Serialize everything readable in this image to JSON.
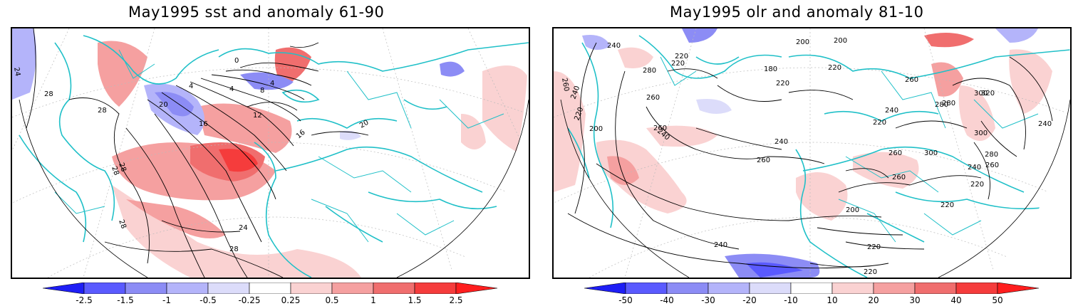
{
  "panels": [
    {
      "title": "May1995 sst and anomaly 61-90",
      "contour_labels": [
        "24",
        "28",
        "28",
        "28",
        "28",
        "28",
        "28",
        "24",
        "20",
        "16",
        "16",
        "12",
        "8",
        "4",
        "4",
        "4",
        "0",
        "20"
      ],
      "colorbar": {
        "labels": [
          "-2.5",
          "-1.5",
          "-1",
          "-0.5",
          "-0.25",
          "0.25",
          "0.5",
          "1",
          "1.5",
          "2.5"
        ],
        "colors": [
          "#1e1ef5",
          "#5a5aff",
          "#8c8cf5",
          "#b4b4fa",
          "#dcdcfa",
          "#ffffff",
          "#fad2d2",
          "#f5a0a0",
          "#f06e6e",
          "#f53c3c",
          "#ff1e1e"
        ]
      }
    },
    {
      "title": "May1995 olr and anomaly 81-10",
      "contour_labels": [
        "240",
        "260",
        "240",
        "220",
        "200",
        "280",
        "220",
        "220",
        "200",
        "180",
        "220",
        "200",
        "220",
        "260",
        "240",
        "260",
        "240",
        "280",
        "300",
        "320",
        "260",
        "220",
        "260",
        "240",
        "260",
        "280",
        "300",
        "300",
        "280",
        "240",
        "260",
        "220",
        "220",
        "240",
        "260",
        "220",
        "200",
        "220",
        "240"
      ],
      "colorbar": {
        "labels": [
          "-50",
          "-40",
          "-30",
          "-20",
          "-10",
          "10",
          "20",
          "30",
          "40",
          "50"
        ],
        "colors": [
          "#1e1ef5",
          "#5a5aff",
          "#8c8cf5",
          "#b4b4fa",
          "#dcdcfa",
          "#ffffff",
          "#fad2d2",
          "#f5a0a0",
          "#f06e6e",
          "#f53c3c",
          "#ff1e1e"
        ]
      }
    }
  ],
  "colors": {
    "coast": "#20c0c8",
    "positive": "#f06e6e",
    "negative": "#5a5aff",
    "contour": "#000000",
    "frame": "#000000"
  }
}
